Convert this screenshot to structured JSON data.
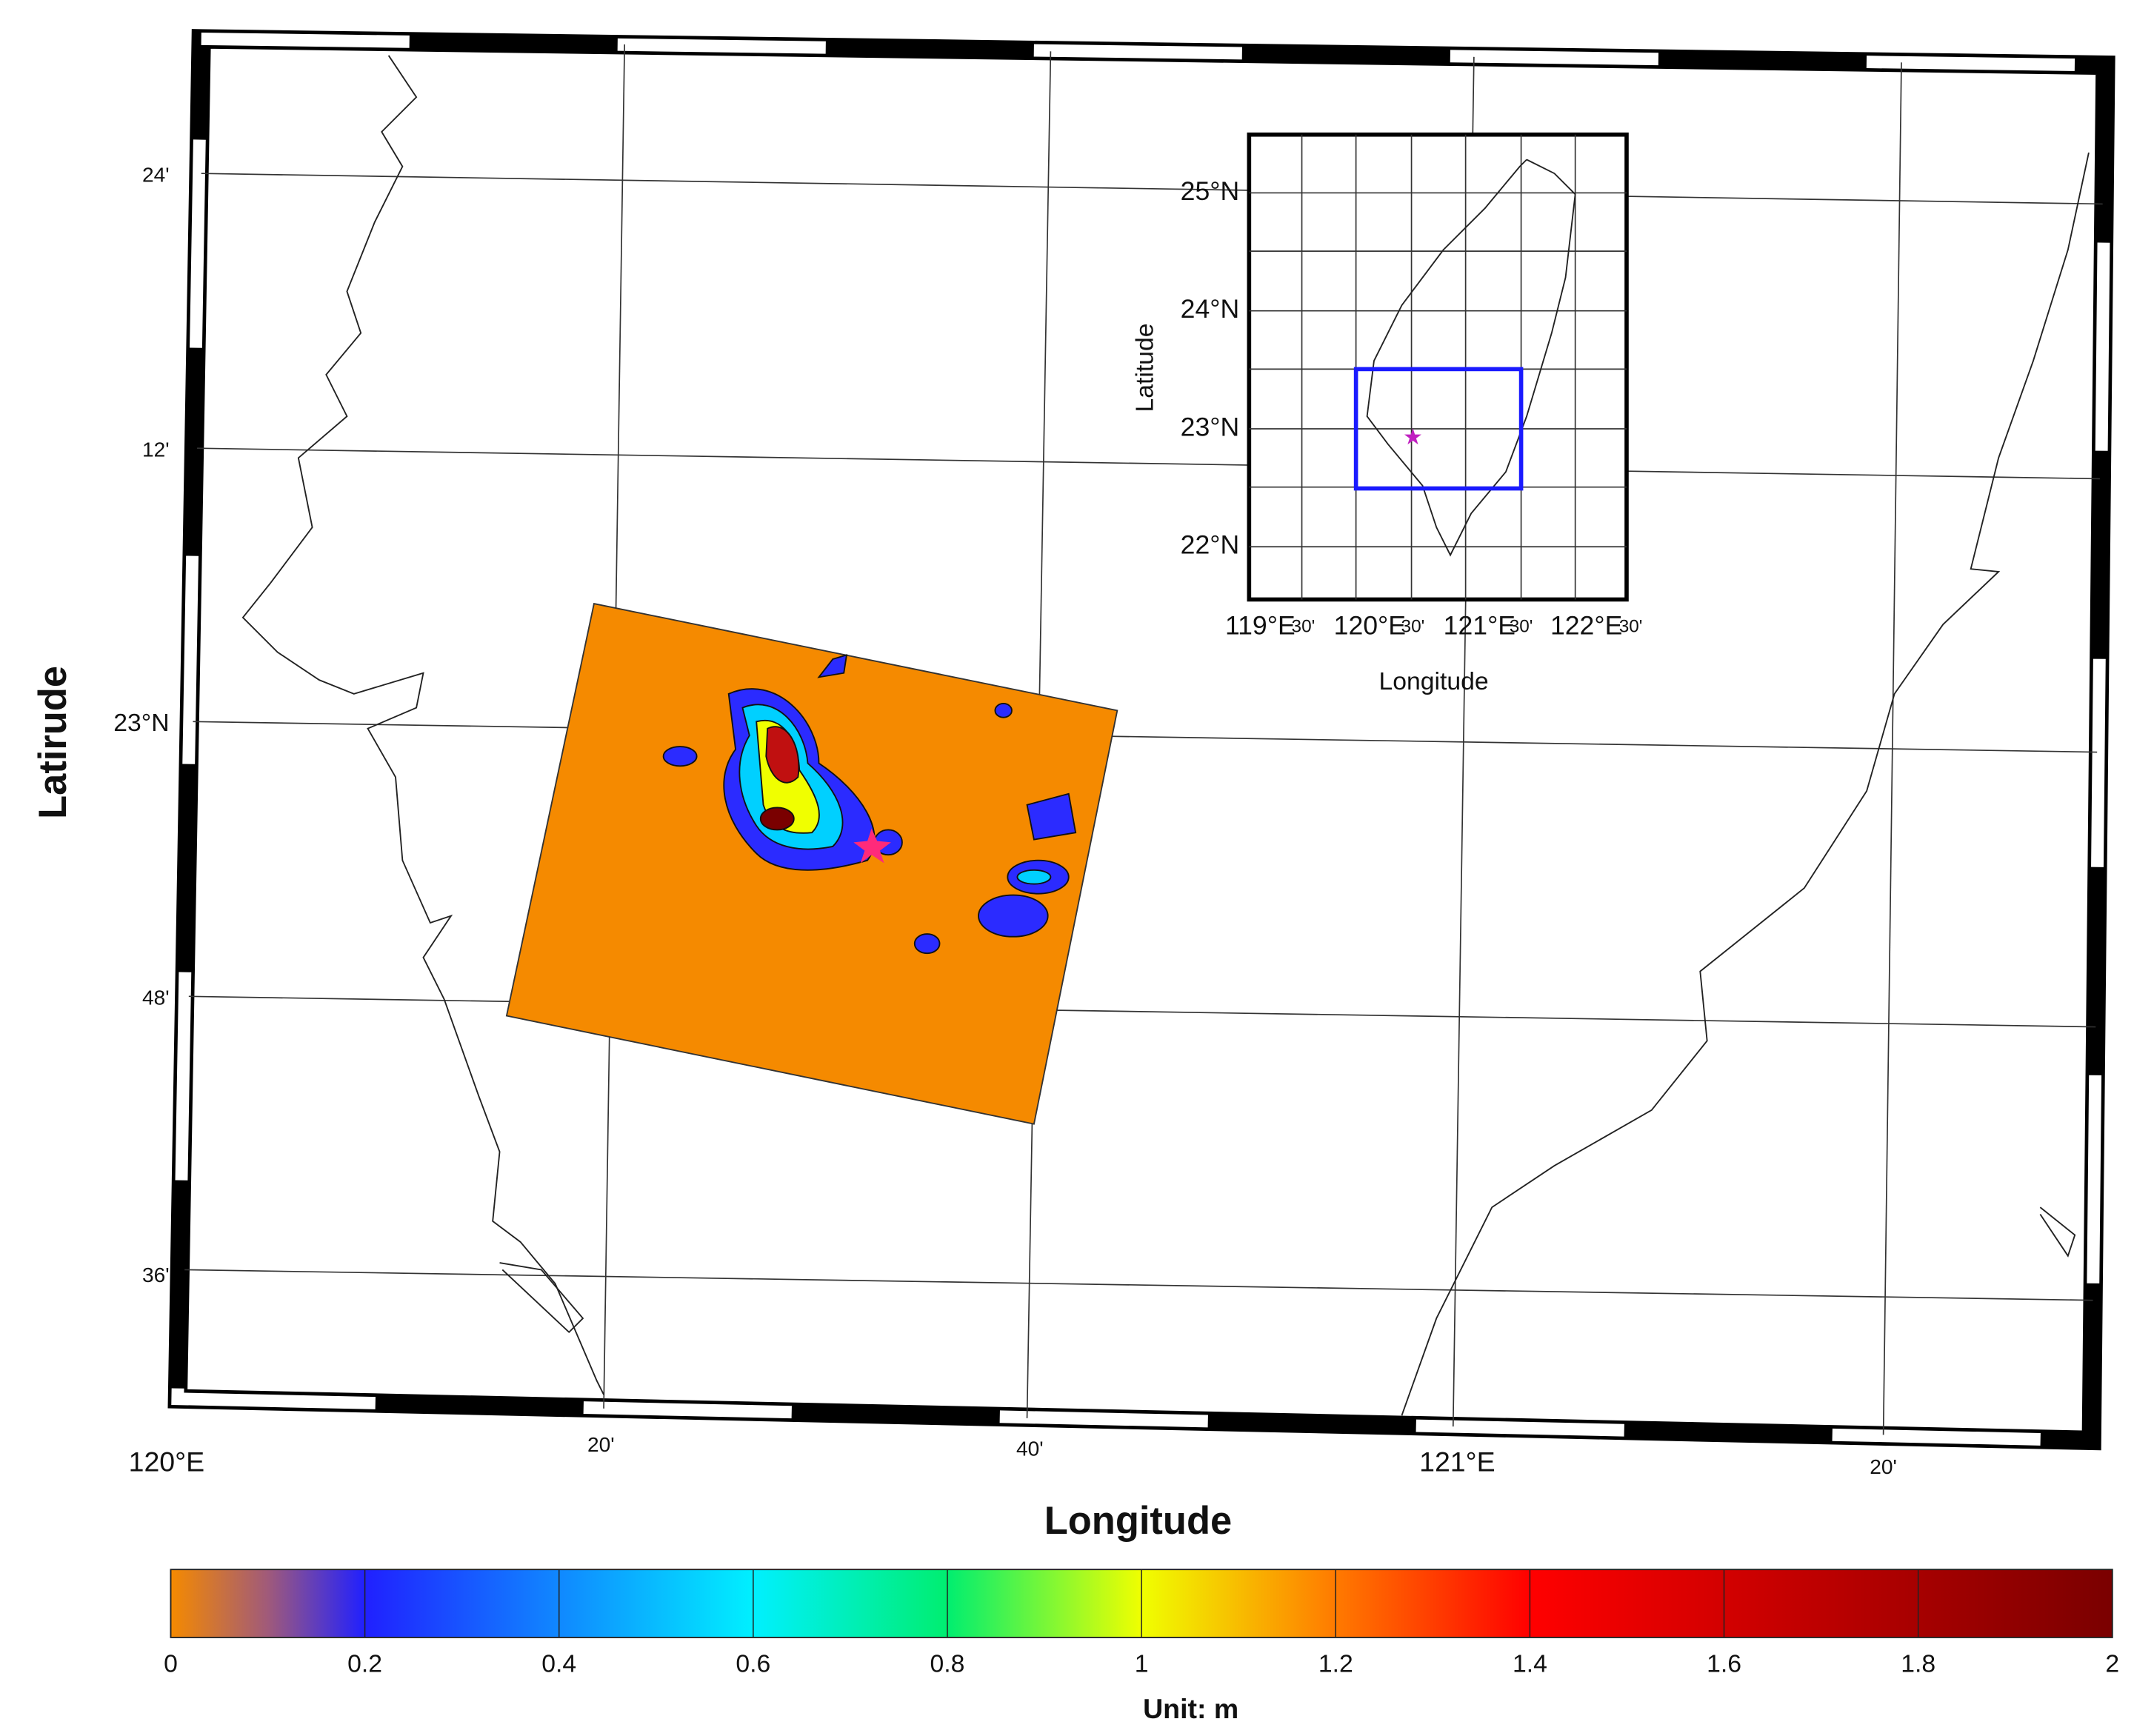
{
  "map": {
    "y_label": "Latirude",
    "x_label": "Longitude",
    "lat_labels": [
      "24'",
      "12'",
      "23°N",
      "48'",
      "36'"
    ],
    "lon_labels": [
      "120°E",
      "20'",
      "40'",
      "121°E",
      "20'"
    ]
  },
  "inset": {
    "y_label": "Latitude",
    "x_label": "Longitude",
    "lat_labels": [
      "25°N",
      "24°N",
      "23°N",
      "22°N"
    ],
    "lon_labels": [
      "119°E",
      "30'",
      "120°E",
      "30'",
      "121°E",
      "30'",
      "122°E",
      "30'"
    ]
  },
  "colorbar": {
    "label": "Unit: m",
    "lim": [
      0,
      2
    ],
    "ticks": [
      0,
      0.2,
      0.4,
      0.6,
      0.8,
      1,
      1.2,
      1.4,
      1.6,
      1.8,
      2
    ]
  }
}
